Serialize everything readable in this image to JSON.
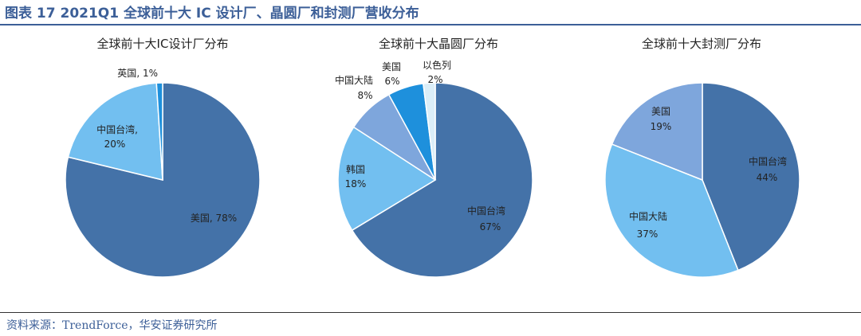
{
  "figure_title": "图表 17 2021Q1 全球前十大 IC 设计厂、晶圆厂和封测厂营收分布",
  "source": "资料来源：TrendForce，华安证券研究所",
  "chart_data": [
    {
      "type": "pie",
      "title": "全球前十大IC设计厂分布",
      "slices": [
        {
          "label": "美国",
          "value": 78,
          "value_label": "78%",
          "color": "#4472a8"
        },
        {
          "label": "中国台湾",
          "value": 20,
          "value_label": "20%",
          "color": "#72bff0"
        },
        {
          "label": "英国",
          "value": 1,
          "value_label": "1%",
          "color": "#1e90dc"
        }
      ]
    },
    {
      "type": "pie",
      "title": "全球前十大晶圆厂分布",
      "slices": [
        {
          "label": "中国台湾",
          "value": 67,
          "value_label": "67%",
          "color": "#4472a8"
        },
        {
          "label": "韩国",
          "value": 18,
          "value_label": "18%",
          "color": "#72bff0"
        },
        {
          "label": "中国大陆",
          "value": 8,
          "value_label": "8%",
          "color": "#7ea6dc"
        },
        {
          "label": "美国",
          "value": 6,
          "value_label": "6%",
          "color": "#1e90dc"
        },
        {
          "label": "以色列",
          "value": 2,
          "value_label": "2%",
          "color": "#dbeef8"
        }
      ]
    },
    {
      "type": "pie",
      "title": "全球前十大封测厂分布",
      "slices": [
        {
          "label": "中国台湾",
          "value": 44,
          "value_label": "44%",
          "color": "#4472a8"
        },
        {
          "label": "中国大陆",
          "value": 37,
          "value_label": "37%",
          "color": "#72bff0"
        },
        {
          "label": "美国",
          "value": 19,
          "value_label": "19%",
          "color": "#7ea6dc"
        }
      ]
    }
  ]
}
